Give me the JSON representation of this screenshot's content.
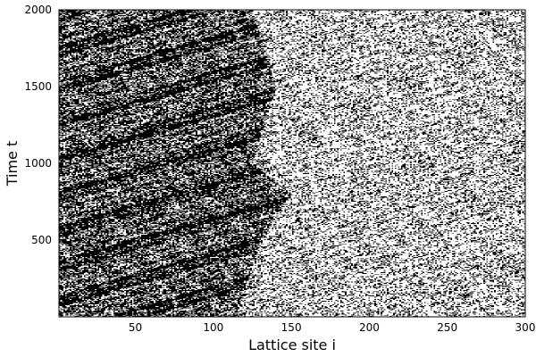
{
  "chart_data": {
    "type": "heatmap",
    "description": "Binary space-time raster (cellular automaton). Black = occupied site, white = empty.",
    "xlabel": "Lattice site i",
    "ylabel": "Time t",
    "xlim": [
      1,
      300
    ],
    "ylim": [
      1,
      2000
    ],
    "xticks": [
      50,
      100,
      150,
      200,
      250,
      300
    ],
    "yticks": [
      500,
      1000,
      1500,
      2000
    ],
    "x_tick_labels": [
      "50",
      "100",
      "150",
      "200",
      "250",
      "300"
    ],
    "y_tick_labels": [
      "500",
      "1000",
      "1500",
      "2000"
    ],
    "grid": false,
    "colors": {
      "occupied": "#000000",
      "empty": "#ffffff"
    },
    "regions": [
      {
        "name": "dense jam band (left)",
        "x_range": [
          1,
          150
        ],
        "occupied_fraction": 0.62
      },
      {
        "name": "free-flow band (right)",
        "x_range": [
          150,
          300
        ],
        "occupied_fraction": 0.28
      }
    ],
    "boundary_shift": [
      {
        "t": 1,
        "x": 115
      },
      {
        "t": 500,
        "x": 130
      },
      {
        "t": 800,
        "x": 150
      },
      {
        "t": 1000,
        "x": 125
      },
      {
        "t": 1500,
        "x": 140
      },
      {
        "t": 2000,
        "x": 125
      }
    ]
  }
}
